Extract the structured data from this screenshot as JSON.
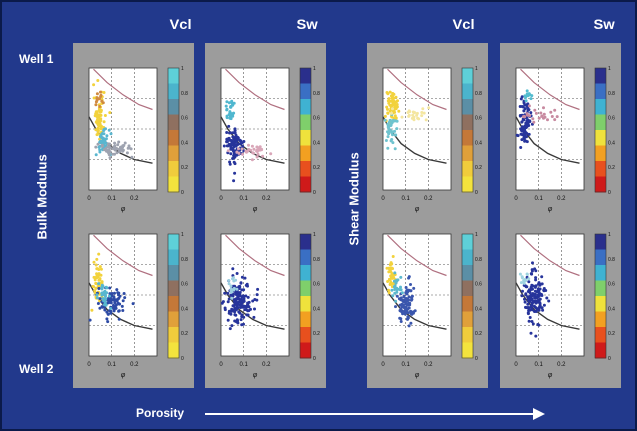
{
  "column_headers": [
    "Vcl",
    "Sw",
    "Vcl",
    "Sw"
  ],
  "row_labels": [
    "Well 1",
    "Well 2"
  ],
  "group_labels": [
    "Bulk Modulus",
    "Shear Modulus"
  ],
  "x_axis_label": "Porosity",
  "colors": {
    "frame": "#22398c",
    "panel": "#9c9c9c",
    "text": "#ffffff",
    "curve": "#b07080",
    "cluster_yellow": "#f1d23a",
    "cluster_blue": "#27349b",
    "cluster_cyan": "#55b9d3"
  },
  "chart_data": {
    "type": "scatter",
    "layout": "2 rows x 4 columns of small scatter plots with colorbars",
    "columns": [
      "Vcl",
      "Sw",
      "Vcl",
      "Sw"
    ],
    "rows": [
      "Well 1",
      "Well 2"
    ],
    "xlabel": "φ",
    "x_ticks": [
      "0",
      "0.1",
      "0.2"
    ],
    "colorbar_palettes": [
      "vcl",
      "sw",
      "vcl",
      "sw"
    ],
    "colorbar_ticks": [
      [
        "0",
        "0.2",
        "0.4",
        "0.6",
        "0.8",
        "1"
      ],
      [
        "0",
        "0.2",
        "0.4",
        "0.6",
        "0.8",
        "1"
      ],
      [
        "0",
        "0.2",
        "0.4",
        "0.6",
        "0.8",
        "1"
      ],
      [
        "0",
        "0.2",
        "0.4",
        "0.6",
        "0.8",
        "1"
      ]
    ],
    "xlim": [
      0,
      0.3
    ],
    "ylim": [
      0,
      1
    ],
    "grid": true,
    "bound_curves": [
      [
        [
          0.02,
          0.99
        ],
        [
          0.08,
          0.88
        ],
        [
          0.15,
          0.78
        ],
        [
          0.22,
          0.7
        ],
        [
          0.28,
          0.66
        ]
      ],
      [
        [
          0,
          0.6
        ],
        [
          0.03,
          0.5
        ],
        [
          0.08,
          0.38
        ],
        [
          0.14,
          0.3
        ],
        [
          0.2,
          0.25
        ],
        [
          0.28,
          0.22
        ]
      ]
    ],
    "clusters": [
      {
        "col": 0,
        "row": 0,
        "series": [
          {
            "color": "#f2d23c",
            "cx": 0.045,
            "cy": 0.6,
            "sx": 0.012,
            "sy": 0.09,
            "n": 70
          },
          {
            "color": "#5ab6cf",
            "cx": 0.06,
            "cy": 0.38,
            "sx": 0.015,
            "sy": 0.06,
            "n": 50
          },
          {
            "color": "#d08a40",
            "cx": 0.045,
            "cy": 0.75,
            "sx": 0.01,
            "sy": 0.04,
            "n": 15
          },
          {
            "color": "#9ea3b0",
            "cx": 0.12,
            "cy": 0.34,
            "sx": 0.04,
            "sy": 0.03,
            "n": 55
          }
        ]
      },
      {
        "col": 1,
        "row": 0,
        "series": [
          {
            "color": "#27349b",
            "cx": 0.06,
            "cy": 0.36,
            "sx": 0.02,
            "sy": 0.07,
            "n": 110
          },
          {
            "color": "#50b7cf",
            "cx": 0.04,
            "cy": 0.64,
            "sx": 0.01,
            "sy": 0.06,
            "n": 25
          },
          {
            "color": "#d9a6b8",
            "cx": 0.13,
            "cy": 0.32,
            "sx": 0.04,
            "sy": 0.03,
            "n": 35
          }
        ]
      },
      {
        "col": 2,
        "row": 0,
        "series": [
          {
            "color": "#f2d23c",
            "cx": 0.04,
            "cy": 0.68,
            "sx": 0.012,
            "sy": 0.07,
            "n": 65
          },
          {
            "color": "#6fc3cf",
            "cx": 0.035,
            "cy": 0.5,
            "sx": 0.012,
            "sy": 0.06,
            "n": 40
          },
          {
            "color": "#f4e6a0",
            "cx": 0.12,
            "cy": 0.62,
            "sx": 0.045,
            "sy": 0.03,
            "n": 25
          }
        ]
      },
      {
        "col": 3,
        "row": 0,
        "series": [
          {
            "color": "#27349b",
            "cx": 0.04,
            "cy": 0.55,
            "sx": 0.012,
            "sy": 0.09,
            "n": 90
          },
          {
            "color": "#c88aa0",
            "cx": 0.12,
            "cy": 0.62,
            "sx": 0.045,
            "sy": 0.03,
            "n": 25
          },
          {
            "color": "#53bccf",
            "cx": 0.05,
            "cy": 0.76,
            "sx": 0.01,
            "sy": 0.03,
            "n": 12
          }
        ]
      },
      {
        "col": 0,
        "row": 1,
        "series": [
          {
            "color": "#f2d23c",
            "cx": 0.04,
            "cy": 0.62,
            "sx": 0.01,
            "sy": 0.07,
            "n": 55
          },
          {
            "color": "#2d4aa5",
            "cx": 0.1,
            "cy": 0.44,
            "sx": 0.03,
            "sy": 0.06,
            "n": 85
          },
          {
            "color": "#58b7cf",
            "cx": 0.07,
            "cy": 0.48,
            "sx": 0.015,
            "sy": 0.05,
            "n": 30
          }
        ]
      },
      {
        "col": 1,
        "row": 1,
        "series": [
          {
            "color": "#27349b",
            "cx": 0.08,
            "cy": 0.46,
            "sx": 0.03,
            "sy": 0.09,
            "n": 150
          },
          {
            "color": "#9dd0e0",
            "cx": 0.05,
            "cy": 0.58,
            "sx": 0.01,
            "sy": 0.05,
            "n": 15
          }
        ]
      },
      {
        "col": 2,
        "row": 1,
        "series": [
          {
            "color": "#f2d23c",
            "cx": 0.04,
            "cy": 0.66,
            "sx": 0.01,
            "sy": 0.06,
            "n": 40
          },
          {
            "color": "#3a56ad",
            "cx": 0.1,
            "cy": 0.42,
            "sx": 0.02,
            "sy": 0.08,
            "n": 95
          },
          {
            "color": "#5cb9cd",
            "cx": 0.06,
            "cy": 0.56,
            "sx": 0.012,
            "sy": 0.04,
            "n": 25
          }
        ]
      },
      {
        "col": 3,
        "row": 1,
        "series": [
          {
            "color": "#27349b",
            "cx": 0.08,
            "cy": 0.48,
            "sx": 0.022,
            "sy": 0.1,
            "n": 140
          },
          {
            "color": "#a0d4e0",
            "cx": 0.04,
            "cy": 0.64,
            "sx": 0.01,
            "sy": 0.03,
            "n": 12
          }
        ]
      }
    ]
  }
}
